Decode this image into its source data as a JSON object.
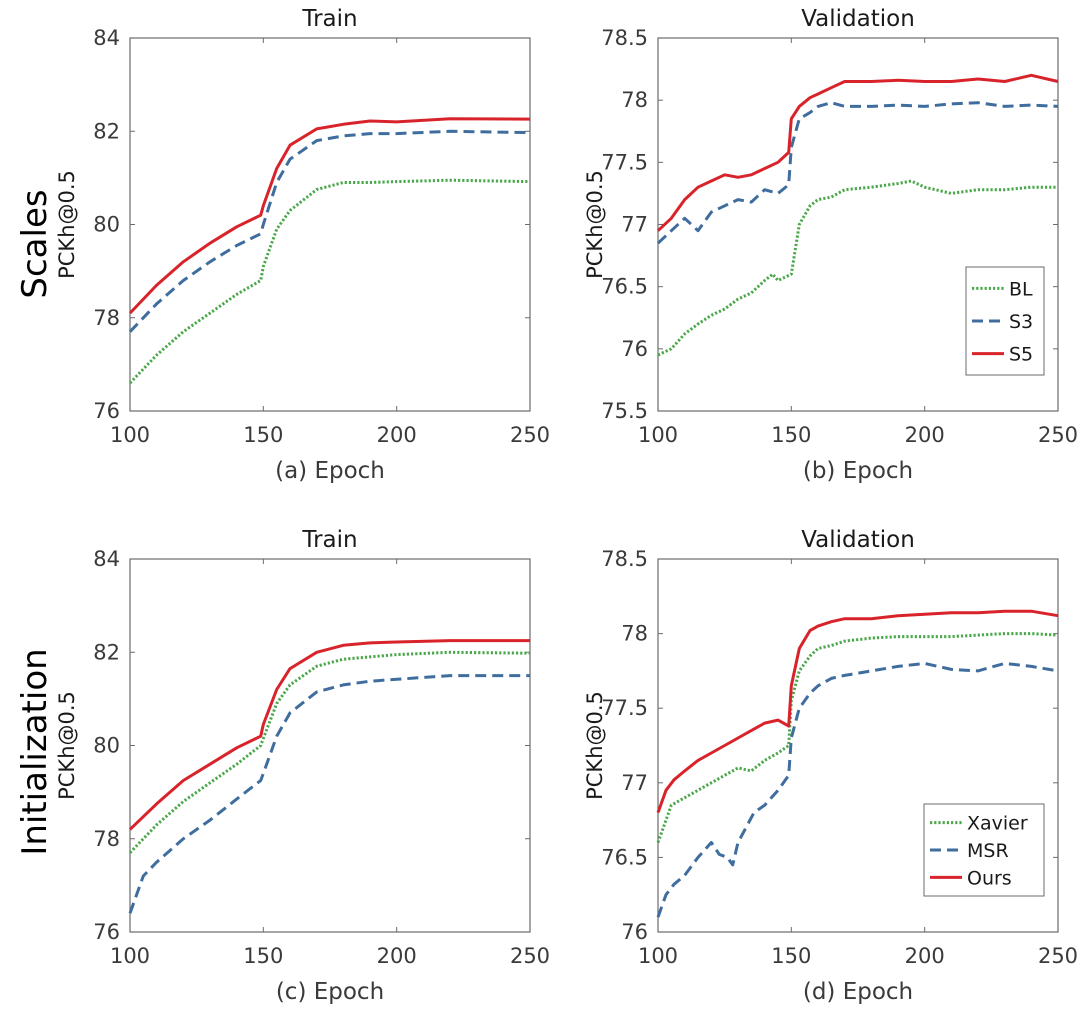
{
  "row_labels": [
    "Scales",
    "Initialization"
  ],
  "colors": {
    "BL": "#4aa84a",
    "S3": "#3f6d9e",
    "S5": "#d9232a",
    "Xavier": "#4aa84a",
    "MSR": "#3f6d9e",
    "Ours": "#d9232a"
  },
  "chart_data": [
    {
      "type": "line",
      "title": "Train",
      "xlabel": "(a) Epoch",
      "ylabel": "PCKh@0.5",
      "xlim": [
        100,
        250
      ],
      "ylim": [
        76,
        84
      ],
      "xticks": [
        "100",
        "150",
        "200",
        "250"
      ],
      "yticks": [
        "76",
        "78",
        "80",
        "82",
        "84"
      ],
      "legend": null,
      "series": [
        {
          "name": "BL",
          "style": "dotted",
          "x": [
            100,
            110,
            120,
            130,
            140,
            149,
            150,
            155,
            160,
            170,
            180,
            190,
            200,
            220,
            250
          ],
          "y": [
            76.6,
            77.2,
            77.7,
            78.1,
            78.5,
            78.8,
            79.1,
            79.9,
            80.3,
            80.75,
            80.9,
            80.9,
            80.92,
            80.95,
            80.92
          ]
        },
        {
          "name": "S3",
          "style": "dashed",
          "x": [
            100,
            110,
            120,
            130,
            140,
            149,
            150,
            155,
            160,
            170,
            180,
            190,
            200,
            220,
            250
          ],
          "y": [
            77.7,
            78.3,
            78.8,
            79.2,
            79.55,
            79.8,
            80.0,
            80.9,
            81.4,
            81.8,
            81.9,
            81.95,
            81.95,
            82.0,
            81.97
          ]
        },
        {
          "name": "S5",
          "style": "solid",
          "x": [
            100,
            110,
            120,
            130,
            140,
            149,
            150,
            155,
            160,
            170,
            180,
            190,
            200,
            220,
            250
          ],
          "y": [
            78.1,
            78.7,
            79.2,
            79.6,
            79.95,
            80.2,
            80.4,
            81.2,
            81.7,
            82.05,
            82.15,
            82.22,
            82.2,
            82.27,
            82.26
          ]
        }
      ]
    },
    {
      "type": "line",
      "title": "Validation",
      "xlabel": "(b) Epoch",
      "ylabel": "PCKh@0.5",
      "xlim": [
        100,
        250
      ],
      "ylim": [
        75.5,
        78.5
      ],
      "xticks": [
        "100",
        "150",
        "200",
        "250"
      ],
      "yticks": [
        "75.5",
        "76",
        "76.5",
        "77",
        "77.5",
        "78",
        "78.5"
      ],
      "legend": "bottom-right",
      "series": [
        {
          "name": "BL",
          "style": "dotted",
          "x": [
            100,
            105,
            110,
            115,
            120,
            125,
            130,
            135,
            140,
            143,
            145,
            150,
            153,
            157,
            160,
            165,
            170,
            180,
            190,
            195,
            200,
            210,
            220,
            230,
            240,
            250
          ],
          "y": [
            75.95,
            76.0,
            76.12,
            76.2,
            76.27,
            76.32,
            76.4,
            76.45,
            76.55,
            76.6,
            76.55,
            76.6,
            77.0,
            77.15,
            77.2,
            77.22,
            77.28,
            77.3,
            77.33,
            77.35,
            77.3,
            77.25,
            77.28,
            77.28,
            77.3,
            77.3
          ]
        },
        {
          "name": "S3",
          "style": "dashed",
          "x": [
            100,
            105,
            110,
            115,
            120,
            125,
            130,
            135,
            140,
            145,
            149,
            150,
            153,
            157,
            160,
            165,
            170,
            180,
            190,
            200,
            210,
            220,
            230,
            240,
            250
          ],
          "y": [
            76.85,
            76.95,
            77.05,
            76.95,
            77.1,
            77.15,
            77.2,
            77.18,
            77.28,
            77.25,
            77.32,
            77.62,
            77.85,
            77.9,
            77.95,
            77.98,
            77.95,
            77.95,
            77.96,
            77.95,
            77.97,
            77.98,
            77.95,
            77.96,
            77.95
          ]
        },
        {
          "name": "S5",
          "style": "solid",
          "x": [
            100,
            105,
            110,
            115,
            120,
            125,
            130,
            135,
            140,
            145,
            149,
            150,
            153,
            157,
            160,
            165,
            170,
            180,
            190,
            200,
            210,
            220,
            230,
            240,
            250
          ],
          "y": [
            76.95,
            77.05,
            77.2,
            77.3,
            77.35,
            77.4,
            77.38,
            77.4,
            77.45,
            77.5,
            77.58,
            77.85,
            77.95,
            78.02,
            78.05,
            78.1,
            78.15,
            78.15,
            78.16,
            78.15,
            78.15,
            78.17,
            78.15,
            78.2,
            78.15
          ]
        }
      ]
    },
    {
      "type": "line",
      "title": "Train",
      "xlabel": "(c) Epoch",
      "ylabel": "PCKh@0.5",
      "xlim": [
        100,
        250
      ],
      "ylim": [
        76,
        84
      ],
      "xticks": [
        "100",
        "150",
        "200",
        "250"
      ],
      "yticks": [
        "76",
        "78",
        "80",
        "82",
        "84"
      ],
      "legend": null,
      "series": [
        {
          "name": "Xavier",
          "style": "dotted",
          "x": [
            100,
            110,
            120,
            130,
            140,
            149,
            150,
            155,
            160,
            170,
            180,
            190,
            200,
            220,
            250
          ],
          "y": [
            77.7,
            78.3,
            78.8,
            79.2,
            79.6,
            80.0,
            80.15,
            80.9,
            81.3,
            81.7,
            81.85,
            81.9,
            81.95,
            82.0,
            81.98
          ]
        },
        {
          "name": "MSR",
          "style": "dashed",
          "x": [
            100,
            105,
            110,
            120,
            130,
            140,
            149,
            150,
            155,
            160,
            170,
            180,
            190,
            200,
            220,
            250
          ],
          "y": [
            76.4,
            77.2,
            77.5,
            78.0,
            78.4,
            78.85,
            79.25,
            79.4,
            80.2,
            80.7,
            81.15,
            81.3,
            81.38,
            81.42,
            81.5,
            81.5
          ]
        },
        {
          "name": "Ours",
          "style": "solid",
          "x": [
            100,
            110,
            120,
            130,
            140,
            149,
            150,
            155,
            160,
            170,
            180,
            190,
            200,
            220,
            250
          ],
          "y": [
            78.2,
            78.75,
            79.25,
            79.6,
            79.95,
            80.2,
            80.45,
            81.2,
            81.65,
            82.0,
            82.15,
            82.2,
            82.22,
            82.25,
            82.25
          ]
        }
      ]
    },
    {
      "type": "line",
      "title": "Validation",
      "xlabel": "(d) Epoch",
      "ylabel": "PCKh@0.5",
      "xlim": [
        100,
        250
      ],
      "ylim": [
        76,
        78.5
      ],
      "xticks": [
        "100",
        "150",
        "200",
        "250"
      ],
      "yticks": [
        "76",
        "76.5",
        "77",
        "77.5",
        "78",
        "78.5"
      ],
      "legend": "bottom-right",
      "series": [
        {
          "name": "Xavier",
          "style": "dotted",
          "x": [
            100,
            105,
            110,
            115,
            120,
            125,
            130,
            135,
            140,
            145,
            149,
            150,
            153,
            157,
            160,
            165,
            170,
            180,
            190,
            200,
            210,
            220,
            230,
            240,
            250
          ],
          "y": [
            76.6,
            76.85,
            76.9,
            76.95,
            77.0,
            77.05,
            77.1,
            77.08,
            77.15,
            77.2,
            77.25,
            77.55,
            77.75,
            77.85,
            77.9,
            77.92,
            77.95,
            77.97,
            77.98,
            77.98,
            77.98,
            77.99,
            78.0,
            78.0,
            77.99
          ]
        },
        {
          "name": "MSR",
          "style": "dashed",
          "x": [
            100,
            103,
            106,
            110,
            115,
            120,
            123,
            126,
            128,
            130,
            133,
            136,
            140,
            145,
            149,
            150,
            153,
            157,
            160,
            165,
            170,
            180,
            190,
            200,
            210,
            220,
            230,
            240,
            250
          ],
          "y": [
            76.1,
            76.25,
            76.32,
            76.38,
            76.5,
            76.6,
            76.52,
            76.5,
            76.45,
            76.6,
            76.7,
            76.8,
            76.85,
            76.95,
            77.05,
            77.3,
            77.5,
            77.6,
            77.65,
            77.7,
            77.72,
            77.75,
            77.78,
            77.8,
            77.76,
            77.75,
            77.8,
            77.78,
            77.75
          ]
        },
        {
          "name": "Ours",
          "style": "solid",
          "x": [
            100,
            103,
            106,
            110,
            115,
            120,
            125,
            130,
            135,
            140,
            145,
            149,
            150,
            153,
            157,
            160,
            165,
            170,
            180,
            190,
            200,
            210,
            220,
            230,
            240,
            250
          ],
          "y": [
            76.8,
            76.95,
            77.02,
            77.08,
            77.15,
            77.2,
            77.25,
            77.3,
            77.35,
            77.4,
            77.42,
            77.38,
            77.65,
            77.9,
            78.02,
            78.05,
            78.08,
            78.1,
            78.1,
            78.12,
            78.13,
            78.14,
            78.14,
            78.15,
            78.15,
            78.12
          ]
        }
      ]
    }
  ]
}
